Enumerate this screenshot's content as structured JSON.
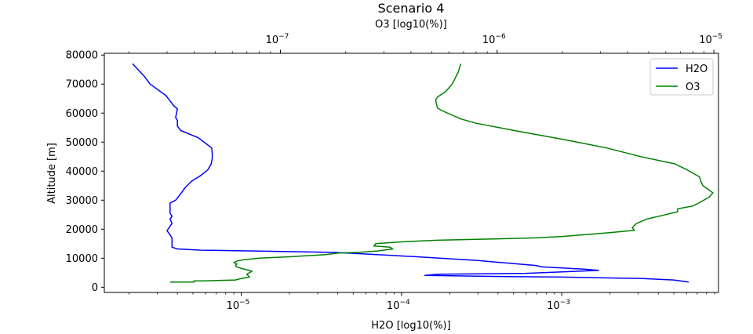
{
  "chart_data": {
    "type": "line",
    "title": "Scenario 4",
    "xlabel": "H2O [log10(%)]",
    "x2label": "O3 [log10(%)]",
    "ylabel": "Altitude [m]",
    "ylim": [
      -1800,
      80600
    ],
    "ylog": false,
    "xscale": "log",
    "xlim": [
      1.4e-06,
      0.0095
    ],
    "x2scale": "log",
    "x2lim": [
      1.54e-08,
      1.05e-05
    ],
    "yticks": [
      0,
      10000,
      20000,
      30000,
      40000,
      50000,
      60000,
      70000,
      80000
    ],
    "ytick_labels": [
      "0",
      "10000",
      "20000",
      "30000",
      "40000",
      "50000",
      "60000",
      "70000",
      "80000"
    ],
    "xticks": [
      1e-05,
      0.0001,
      0.001
    ],
    "xtick_labels": [
      {
        "base": "10",
        "exp": "−5"
      },
      {
        "base": "10",
        "exp": "−4"
      },
      {
        "base": "10",
        "exp": "−3"
      }
    ],
    "x2ticks": [
      1e-07,
      1e-06,
      1e-05
    ],
    "x2tick_labels": [
      {
        "base": "10",
        "exp": "−7"
      },
      {
        "base": "10",
        "exp": "−6"
      },
      {
        "base": "10",
        "exp": "−5"
      }
    ],
    "grid": false,
    "legend_position": "top-right",
    "series": [
      {
        "name": "H2O",
        "color": "#0000ff",
        "axis": "bottom",
        "points": [
          [
            0.0062,
            1800
          ],
          [
            0.005,
            2500
          ],
          [
            0.0032,
            3000
          ],
          [
            0.001,
            3500
          ],
          [
            0.0003,
            3800
          ],
          [
            0.00014,
            4100
          ],
          [
            0.00017,
            4500
          ],
          [
            0.0006,
            4800
          ],
          [
            0.0017,
            5800
          ],
          [
            0.0014,
            6200
          ],
          [
            0.00075,
            7000
          ],
          [
            0.00069,
            7500
          ],
          [
            0.0003,
            9200
          ],
          [
            0.000125,
            10500
          ],
          [
            3.8e-05,
            12000
          ],
          [
            1.2e-05,
            12500
          ],
          [
            5.5e-06,
            12800
          ],
          [
            4e-06,
            13200
          ],
          [
            3.7e-06,
            13800
          ],
          [
            3.7e-06,
            15000
          ],
          [
            3.7e-06,
            17000
          ],
          [
            3.6e-06,
            18000
          ],
          [
            3.45e-06,
            19500
          ],
          [
            3.6e-06,
            21000
          ],
          [
            3.7e-06,
            22000
          ],
          [
            3.6e-06,
            23500
          ],
          [
            3.7e-06,
            24500
          ],
          [
            3.6e-06,
            25500
          ],
          [
            3.6e-06,
            27000
          ],
          [
            3.6e-06,
            29000
          ],
          [
            3.9e-06,
            30000
          ],
          [
            4.1e-06,
            31500
          ],
          [
            4.3e-06,
            33000
          ],
          [
            4.5e-06,
            34500
          ],
          [
            4.9e-06,
            36500
          ],
          [
            5.6e-06,
            38500
          ],
          [
            6.2e-06,
            40500
          ],
          [
            6.5e-06,
            42500
          ],
          [
            6.6e-06,
            44500
          ],
          [
            6.6e-06,
            46000
          ],
          [
            6.55e-06,
            48000
          ],
          [
            5.4e-06,
            51500
          ],
          [
            4.2e-06,
            54000
          ],
          [
            4e-06,
            55500
          ],
          [
            4e-06,
            57500
          ],
          [
            3.9e-06,
            58500
          ],
          [
            4e-06,
            61500
          ],
          [
            3.8e-06,
            62500
          ],
          [
            3.4e-06,
            66000
          ],
          [
            2.7e-06,
            70000
          ],
          [
            2.5e-06,
            72500
          ],
          [
            2.1e-06,
            77000
          ]
        ]
      },
      {
        "name": "O3",
        "color": "#008000",
        "axis": "top",
        "points": [
          [
            3.1e-08,
            1800
          ],
          [
            4e-08,
            1800
          ],
          [
            4e-08,
            2200
          ],
          [
            4.4e-08,
            2200
          ],
          [
            6.2e-08,
            2500
          ],
          [
            6.6e-08,
            3000
          ],
          [
            7.2e-08,
            3500
          ],
          [
            7e-08,
            4500
          ],
          [
            7.4e-08,
            5500
          ],
          [
            7e-08,
            6000
          ],
          [
            6.6e-08,
            6500
          ],
          [
            6.3e-08,
            7000
          ],
          [
            6.2e-08,
            7500
          ],
          [
            6.3e-08,
            8000
          ],
          [
            6.1e-08,
            8500
          ],
          [
            6.3e-08,
            9000
          ],
          [
            6.8e-08,
            9500
          ],
          [
            8e-08,
            10000
          ],
          [
            1.1e-07,
            10500
          ],
          [
            1.6e-07,
            11200
          ],
          [
            1.85e-07,
            11800
          ],
          [
            2.3e-07,
            12000
          ],
          [
            2.8e-07,
            12500
          ],
          [
            3.3e-07,
            13200
          ],
          [
            3.2e-07,
            13800
          ],
          [
            2.7e-07,
            14200
          ],
          [
            2.75e-07,
            15000
          ],
          [
            3.4e-07,
            15500
          ],
          [
            4e-07,
            15800
          ],
          [
            5.3e-07,
            16200
          ],
          [
            8e-07,
            16500
          ],
          [
            1.5e-06,
            17000
          ],
          [
            2e-06,
            17500
          ],
          [
            3.3e-06,
            18800
          ],
          [
            4.3e-06,
            19600
          ],
          [
            4.2e-06,
            20500
          ],
          [
            4.4e-06,
            22000
          ],
          [
            4.9e-06,
            23500
          ],
          [
            5.6e-06,
            24500
          ],
          [
            6.8e-06,
            26000
          ],
          [
            6.8e-06,
            27000
          ],
          [
            8e-06,
            28000
          ],
          [
            8.5e-06,
            29000
          ],
          [
            9.5e-06,
            31000
          ],
          [
            9.9e-06,
            32500
          ],
          [
            9.5e-06,
            33500
          ],
          [
            8.9e-06,
            35000
          ],
          [
            8.7e-06,
            36500
          ],
          [
            8.6e-06,
            38000
          ],
          [
            7.5e-06,
            40500
          ],
          [
            6.6e-06,
            42500
          ],
          [
            4.6e-06,
            45000
          ],
          [
            3.2e-06,
            48000
          ],
          [
            2e-06,
            51000
          ],
          [
            1.2e-06,
            54000
          ],
          [
            8e-07,
            56500
          ],
          [
            6.8e-07,
            58000
          ],
          [
            5.5e-07,
            61000
          ],
          [
            5.3e-07,
            61800
          ],
          [
            5.2e-07,
            64500
          ],
          [
            5.3e-07,
            65500
          ],
          [
            5.8e-07,
            67500
          ],
          [
            6.2e-07,
            70000
          ],
          [
            6.6e-07,
            74000
          ],
          [
            6.8e-07,
            77000
          ]
        ]
      }
    ]
  }
}
